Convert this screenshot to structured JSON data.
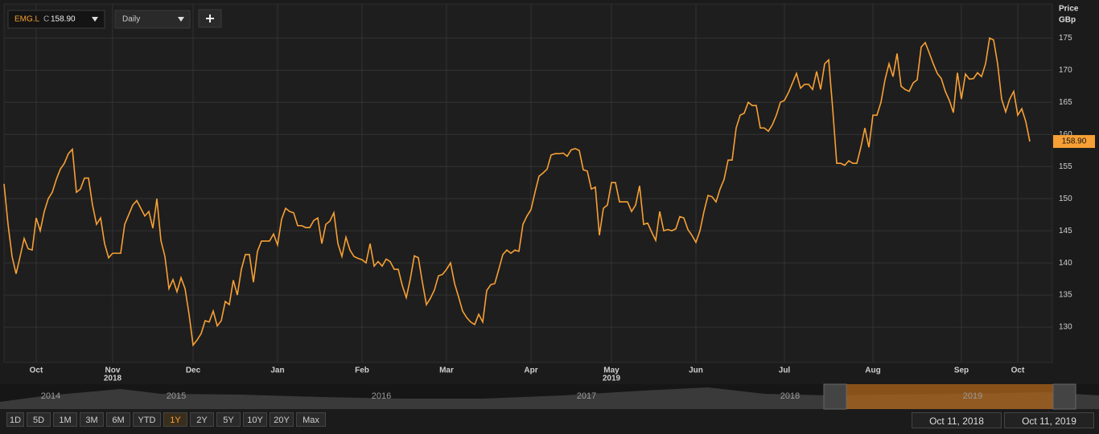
{
  "chart_data": {
    "type": "line",
    "symbol": "EMG.L",
    "close_prefix": "C",
    "current_price": {
      "value": 158.9,
      "label": "158.90"
    },
    "interval": "Daily",
    "y_axis_title": "Price",
    "y_axis_unit": "GBp",
    "year_labels": [
      "2018",
      "2019"
    ],
    "categories": [
      null,
      null,
      null,
      null,
      null,
      null,
      null,
      null,
      "Oct",
      null,
      null,
      null,
      null,
      null,
      null,
      null,
      null,
      null,
      null,
      null,
      null,
      null,
      null,
      null,
      null,
      null,
      null,
      "Nov",
      null,
      null,
      null,
      null,
      null,
      null,
      null,
      null,
      null,
      null,
      null,
      null,
      null,
      null,
      null,
      null,
      null,
      null,
      null,
      "Dec",
      null,
      null,
      null,
      null,
      null,
      null,
      null,
      null,
      null,
      null,
      null,
      null,
      null,
      null,
      null,
      null,
      null,
      null,
      null,
      null,
      "Jan",
      null,
      null,
      null,
      null,
      null,
      null,
      null,
      null,
      null,
      null,
      null,
      null,
      null,
      null,
      null,
      null,
      null,
      null,
      null,
      null,
      "Feb",
      null,
      null,
      null,
      null,
      null,
      null,
      null,
      null,
      null,
      null,
      null,
      null,
      null,
      null,
      null,
      null,
      null,
      null,
      null,
      null,
      "Mar",
      null,
      null,
      null,
      null,
      null,
      null,
      null,
      null,
      null,
      null,
      null,
      null,
      null,
      null,
      null,
      null,
      null,
      null,
      null,
      null,
      "Apr",
      null,
      null,
      null,
      null,
      null,
      null,
      null,
      null,
      null,
      null,
      null,
      null,
      null,
      null,
      null,
      null,
      null,
      null,
      null,
      "May",
      null,
      null,
      null,
      null,
      null,
      null,
      null,
      null,
      null,
      null,
      null,
      null,
      null,
      null,
      null,
      null,
      null,
      null,
      null,
      null,
      "Jun",
      null,
      null,
      null,
      null,
      null,
      null,
      null,
      null,
      null,
      null,
      null,
      null,
      null,
      null,
      null,
      null,
      null,
      null,
      null,
      null,
      null,
      "Jul",
      null,
      null,
      null,
      null,
      null,
      null,
      null,
      null,
      null,
      null,
      null,
      null,
      null,
      null,
      null,
      null,
      null,
      null,
      null,
      null,
      null,
      "Aug",
      null,
      null,
      null,
      null,
      null,
      null,
      null,
      null,
      null,
      null,
      null,
      null,
      null,
      null,
      null,
      null,
      null,
      null,
      null,
      null,
      null,
      "Sep",
      null,
      null,
      null,
      null,
      null,
      null,
      null,
      null,
      null,
      null,
      null,
      null,
      null,
      "Oct",
      null,
      null,
      null
    ],
    "series": [
      {
        "name": "EMG.L",
        "color": "#f7a035",
        "values": [
          152.3,
          146,
          141,
          138.3,
          141,
          143.8,
          142.2,
          142,
          147,
          145,
          148,
          150,
          151,
          153,
          154.6,
          155.5,
          157,
          157.7,
          151,
          151.5,
          153.2,
          153.2,
          149,
          146,
          147,
          143,
          140.8,
          141.5,
          141.5,
          141.5,
          146,
          147.5,
          149,
          149.7,
          148.5,
          147.3,
          148,
          145.4,
          150,
          143.5,
          141,
          136,
          137.4,
          135.5,
          137.7,
          136,
          132,
          127.2,
          128,
          129,
          131,
          130.8,
          132.5,
          130.2,
          131,
          134,
          133.5,
          137.3,
          135,
          139,
          141.3,
          141.3,
          137,
          141.8,
          143.4,
          143.4,
          143.4,
          144.5,
          142.8,
          146.8,
          148.5,
          148,
          147.8,
          145.8,
          145.8,
          145.5,
          145.5,
          146.6,
          147,
          143,
          146,
          146.5,
          147.8,
          143,
          141,
          144,
          142,
          141,
          140.7,
          140.5,
          140,
          143,
          139.5,
          140.2,
          139.5,
          140.6,
          140.2,
          139,
          139,
          136.5,
          134.6,
          137.5,
          141.1,
          140.8,
          137,
          133.5,
          134.5,
          135.8,
          138,
          138.2,
          139,
          140,
          136.8,
          134.7,
          132.5,
          131.5,
          130.8,
          130.4,
          132,
          130.8,
          135.7,
          136.6,
          136.8,
          139,
          141.3,
          142,
          141.5,
          142,
          141.8,
          146,
          147.3,
          148.3,
          151,
          153.5,
          154,
          154.6,
          156.8,
          157,
          157,
          157.1,
          156.6,
          157.6,
          157.8,
          157.5,
          154.5,
          154.3,
          151.5,
          151.8,
          144.3,
          148.5,
          149,
          152.5,
          152.5,
          149.5,
          149.5,
          149.5,
          148,
          149,
          152,
          146,
          146.2,
          144.8,
          143.5,
          148,
          145,
          145.2,
          145,
          145.3,
          147.2,
          147,
          145.2,
          144.3,
          143.2,
          145,
          148,
          150.5,
          150.3,
          149.5,
          151.5,
          153,
          156,
          156,
          161,
          163,
          163.3,
          165,
          164.5,
          164.5,
          161,
          161,
          160.5,
          161.5,
          163,
          165,
          165.3,
          166.5,
          168,
          169.5,
          167.2,
          167.8,
          167.8,
          167,
          169.8,
          167,
          171,
          171.6,
          164,
          155.5,
          155.5,
          155.2,
          155.9,
          155.5,
          155.5,
          158,
          161,
          158,
          163,
          163,
          165,
          168.5,
          171,
          169,
          172.6,
          167.5,
          167,
          166.7,
          168,
          168.5,
          173.6,
          174.3,
          172.7,
          171,
          169.5,
          168.7,
          166.7,
          165.3,
          163.4,
          169.6,
          165.5,
          169.4,
          168.6,
          168.7,
          169.6,
          169,
          171,
          175,
          174.7,
          171,
          165.5,
          163.5,
          165.5,
          166.7,
          163,
          164,
          162,
          158.9
        ]
      }
    ],
    "ylim": [
      124.5,
      180.3
    ],
    "yticks": [
      130,
      135,
      140,
      145,
      150,
      155,
      160,
      165,
      170,
      175
    ],
    "grid": true
  },
  "navigator": {
    "years": [
      "2014",
      "2015",
      "2016",
      "2017",
      "2018",
      "2019"
    ]
  },
  "range_buttons": [
    "1D",
    "5D",
    "1M",
    "3M",
    "6M",
    "YTD",
    "1Y",
    "2Y",
    "5Y",
    "10Y",
    "20Y",
    "Max"
  ],
  "active_range": "1Y",
  "date_range": [
    "Oct 11, 2018",
    "Oct 11, 2019"
  ]
}
